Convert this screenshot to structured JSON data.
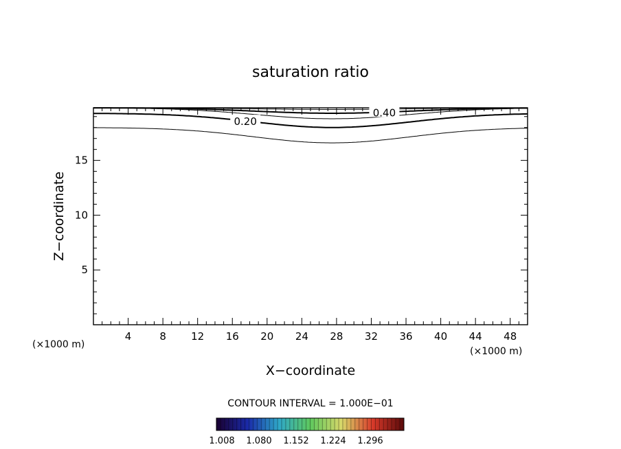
{
  "chart_data": {
    "type": "contour",
    "title": "saturation ratio",
    "xlabel": "X−coordinate",
    "ylabel": "Z−coordinate",
    "x_unit_left": "(×1000 m)",
    "x_unit_right": "(×1000 m)",
    "xlim": [
      0,
      50
    ],
    "ylim": [
      0,
      19.8
    ],
    "x_ticks": [
      4,
      8,
      12,
      16,
      20,
      24,
      28,
      32,
      36,
      40,
      44,
      48
    ],
    "y_ticks": [
      5,
      10,
      15
    ],
    "contours": [
      {
        "level": "0.10",
        "labeled": false,
        "edge_height": 18.0,
        "center_height": 16.6,
        "center_x": 27.5
      },
      {
        "level": "0.20",
        "labeled": true,
        "edge_height": 19.3,
        "center_height": 18.0,
        "center_x": 27.5
      },
      {
        "level": "0.30",
        "labeled": false,
        "edge_height": 19.8,
        "center_height": 18.8,
        "center_x": 27.5
      },
      {
        "level": "0.40",
        "labeled": true,
        "edge_height": 19.8,
        "center_height": 19.3,
        "center_x": 27.5
      },
      {
        "level": "0.50",
        "labeled": false,
        "edge_height": 19.8,
        "center_height": 19.65,
        "center_x": 27.5
      }
    ],
    "contour_interval_text": "CONTOUR INTERVAL = 1.000E−01",
    "colorbar": {
      "labels": [
        "1.008",
        "1.080",
        "1.152",
        "1.224",
        "1.296"
      ],
      "colors": [
        "#1a0030",
        "#1a2aa8",
        "#2fa8c8",
        "#5ec85e",
        "#d8d86a",
        "#d83a2a",
        "#5a0a0a"
      ]
    }
  }
}
